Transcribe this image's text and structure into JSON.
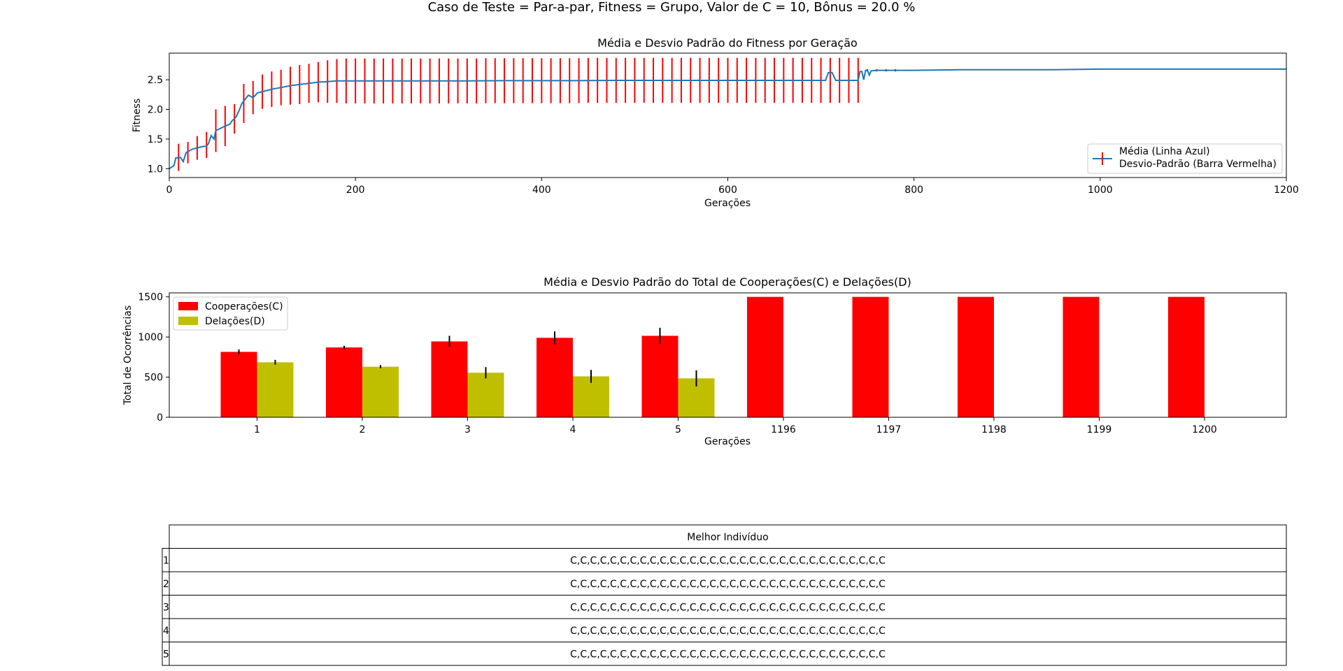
{
  "suptitle": "Caso de Teste = Par-a-par, Fitness = Grupo, Valor de C = 10, Bônus = 20.0 %",
  "colors": {
    "mean_line": "#1f77b4",
    "std_bar": "#ff0000",
    "coop_bar": "#ff0000",
    "delation_bar": "#bfbf00",
    "error_bar": "#000000"
  },
  "chart_data": [
    {
      "type": "line",
      "title": "Média e Desvio Padrão do Fitness por Geração",
      "xlabel": "Gerações",
      "ylabel": "Fitness",
      "xlim": [
        0,
        1200
      ],
      "ylim": [
        0.85,
        2.95
      ],
      "xticks": [
        0,
        200,
        400,
        600,
        800,
        1000,
        1200
      ],
      "yticks": [
        1.0,
        1.5,
        2.0,
        2.5
      ],
      "ytick_labels": [
        "1.0",
        "1.5",
        "2.0",
        "2.5"
      ],
      "legend": {
        "placement": "lower-right",
        "entries": [
          "Média (Linha Azul)",
          "Desvio-Padrão (Barra Vermelha)"
        ]
      },
      "mean_points": [
        [
          0,
          1.0
        ],
        [
          3,
          1.03
        ],
        [
          5,
          1.05
        ],
        [
          7,
          1.18
        ],
        [
          12,
          1.19
        ],
        [
          15,
          1.12
        ],
        [
          18,
          1.27
        ],
        [
          25,
          1.33
        ],
        [
          30,
          1.35
        ],
        [
          35,
          1.37
        ],
        [
          40,
          1.38
        ],
        [
          42,
          1.42
        ],
        [
          45,
          1.56
        ],
        [
          48,
          1.5
        ],
        [
          50,
          1.64
        ],
        [
          55,
          1.68
        ],
        [
          60,
          1.72
        ],
        [
          65,
          1.75
        ],
        [
          68,
          1.82
        ],
        [
          70,
          1.84
        ],
        [
          72,
          1.88
        ],
        [
          75,
          1.98
        ],
        [
          78,
          2.1
        ],
        [
          82,
          2.18
        ],
        [
          85,
          2.24
        ],
        [
          90,
          2.2
        ],
        [
          95,
          2.28
        ],
        [
          100,
          2.3
        ],
        [
          110,
          2.34
        ],
        [
          120,
          2.37
        ],
        [
          130,
          2.4
        ],
        [
          140,
          2.42
        ],
        [
          150,
          2.44
        ],
        [
          160,
          2.46
        ],
        [
          170,
          2.47
        ],
        [
          180,
          2.48
        ],
        [
          200,
          2.48
        ],
        [
          240,
          2.48
        ],
        [
          280,
          2.48
        ],
        [
          320,
          2.48
        ],
        [
          360,
          2.485
        ],
        [
          400,
          2.485
        ],
        [
          440,
          2.485
        ],
        [
          480,
          2.49
        ],
        [
          520,
          2.49
        ],
        [
          560,
          2.49
        ],
        [
          600,
          2.49
        ],
        [
          640,
          2.49
        ],
        [
          680,
          2.49
        ],
        [
          705,
          2.49
        ],
        [
          708,
          2.62
        ],
        [
          712,
          2.62
        ],
        [
          716,
          2.49
        ],
        [
          740,
          2.49
        ],
        [
          742,
          2.64
        ],
        [
          744,
          2.64
        ],
        [
          746,
          2.5
        ],
        [
          748,
          2.66
        ],
        [
          750,
          2.66
        ],
        [
          752,
          2.58
        ],
        [
          754,
          2.65
        ],
        [
          760,
          2.66
        ],
        [
          800,
          2.66
        ],
        [
          850,
          2.67
        ],
        [
          900,
          2.67
        ],
        [
          950,
          2.67
        ],
        [
          1000,
          2.68
        ],
        [
          1050,
          2.68
        ],
        [
          1100,
          2.68
        ],
        [
          1150,
          2.68
        ],
        [
          1200,
          2.68
        ]
      ],
      "std_bars": [
        [
          10,
          1.19,
          0.23
        ],
        [
          20,
          1.27,
          0.18
        ],
        [
          30,
          1.35,
          0.2
        ],
        [
          40,
          1.4,
          0.22
        ],
        [
          50,
          1.64,
          0.36
        ],
        [
          60,
          1.72,
          0.34
        ],
        [
          70,
          1.84,
          0.25
        ],
        [
          80,
          2.1,
          0.33
        ],
        [
          90,
          2.2,
          0.28
        ],
        [
          100,
          2.3,
          0.29
        ],
        [
          110,
          2.34,
          0.3
        ],
        [
          120,
          2.37,
          0.3
        ],
        [
          130,
          2.4,
          0.32
        ],
        [
          140,
          2.42,
          0.33
        ],
        [
          150,
          2.44,
          0.33
        ],
        [
          160,
          2.46,
          0.34
        ],
        [
          170,
          2.47,
          0.36
        ],
        [
          180,
          2.48,
          0.37
        ],
        [
          190,
          2.48,
          0.38
        ],
        [
          200,
          2.48,
          0.38
        ],
        [
          210,
          2.48,
          0.38
        ],
        [
          220,
          2.48,
          0.38
        ],
        [
          230,
          2.48,
          0.38
        ],
        [
          240,
          2.48,
          0.38
        ],
        [
          250,
          2.48,
          0.38
        ],
        [
          260,
          2.48,
          0.38
        ],
        [
          270,
          2.48,
          0.38
        ],
        [
          280,
          2.48,
          0.38
        ],
        [
          290,
          2.48,
          0.38
        ],
        [
          300,
          2.48,
          0.38
        ],
        [
          310,
          2.48,
          0.38
        ],
        [
          320,
          2.48,
          0.38
        ],
        [
          330,
          2.48,
          0.38
        ],
        [
          340,
          2.485,
          0.38
        ],
        [
          350,
          2.485,
          0.38
        ],
        [
          360,
          2.485,
          0.38
        ],
        [
          370,
          2.485,
          0.38
        ],
        [
          380,
          2.485,
          0.38
        ],
        [
          390,
          2.485,
          0.38
        ],
        [
          400,
          2.485,
          0.38
        ],
        [
          410,
          2.485,
          0.38
        ],
        [
          420,
          2.485,
          0.38
        ],
        [
          430,
          2.485,
          0.38
        ],
        [
          440,
          2.485,
          0.38
        ],
        [
          450,
          2.49,
          0.38
        ],
        [
          460,
          2.49,
          0.38
        ],
        [
          470,
          2.49,
          0.38
        ],
        [
          480,
          2.49,
          0.38
        ],
        [
          490,
          2.49,
          0.38
        ],
        [
          500,
          2.49,
          0.38
        ],
        [
          510,
          2.49,
          0.38
        ],
        [
          520,
          2.49,
          0.38
        ],
        [
          530,
          2.49,
          0.38
        ],
        [
          540,
          2.49,
          0.38
        ],
        [
          550,
          2.49,
          0.38
        ],
        [
          560,
          2.49,
          0.38
        ],
        [
          570,
          2.49,
          0.38
        ],
        [
          580,
          2.49,
          0.38
        ],
        [
          590,
          2.49,
          0.38
        ],
        [
          600,
          2.49,
          0.38
        ],
        [
          610,
          2.49,
          0.38
        ],
        [
          620,
          2.49,
          0.38
        ],
        [
          630,
          2.49,
          0.38
        ],
        [
          640,
          2.49,
          0.38
        ],
        [
          650,
          2.49,
          0.38
        ],
        [
          660,
          2.49,
          0.38
        ],
        [
          670,
          2.49,
          0.38
        ],
        [
          680,
          2.49,
          0.38
        ],
        [
          690,
          2.49,
          0.38
        ],
        [
          700,
          2.49,
          0.38
        ],
        [
          710,
          2.49,
          0.38
        ],
        [
          720,
          2.49,
          0.38
        ],
        [
          730,
          2.49,
          0.38
        ],
        [
          740,
          2.49,
          0.38
        ],
        [
          750,
          2.66,
          0.02
        ],
        [
          760,
          2.66,
          0.02
        ],
        [
          770,
          2.66,
          0.02
        ],
        [
          780,
          2.66,
          0.02
        ]
      ]
    },
    {
      "type": "bar",
      "title": "Média e Desvio Padrão do Total de Cooperações(C) e Delações(D)",
      "xlabel": "Gerações",
      "ylabel": "Total de Ocorrências",
      "ylim": [
        0,
        1550
      ],
      "yticks": [
        0,
        500,
        1000,
        1500
      ],
      "categories": [
        "1",
        "2",
        "3",
        "4",
        "5",
        "1196",
        "1197",
        "1198",
        "1199",
        "1200"
      ],
      "legend": {
        "placement": "top-left"
      },
      "series": [
        {
          "name": "Cooperações(C)",
          "values": [
            815,
            870,
            945,
            990,
            1015,
            1500,
            1500,
            1500,
            1500,
            1500
          ],
          "errors": [
            30,
            20,
            70,
            80,
            100,
            0,
            0,
            0,
            0,
            0
          ]
        },
        {
          "name": "Delações(D)",
          "values": [
            685,
            630,
            555,
            510,
            485,
            0,
            0,
            0,
            0,
            0
          ],
          "errors": [
            30,
            20,
            70,
            80,
            100,
            0,
            0,
            0,
            0,
            0
          ]
        }
      ]
    },
    {
      "type": "table",
      "column_header": "Melhor Indivíduo",
      "rows": [
        {
          "label": "1",
          "value": "C,C,C,C,C,C,C,C,C,C,C,C,C,C,C,C,C,C,C,C,C,C,C,C,C,C,C,C,C,C,C,C"
        },
        {
          "label": "2",
          "value": "C,C,C,C,C,C,C,C,C,C,C,C,C,C,C,C,C,C,C,C,C,C,C,C,C,C,C,C,C,C,C,C"
        },
        {
          "label": "3",
          "value": "C,C,C,C,C,C,C,C,C,C,C,C,C,C,C,C,C,C,C,C,C,C,C,C,C,C,C,C,C,C,C,C"
        },
        {
          "label": "4",
          "value": "C,C,C,C,C,C,C,C,C,C,C,C,C,C,C,C,C,C,C,C,C,C,C,C,C,C,C,C,C,C,C,C"
        },
        {
          "label": "5",
          "value": "C,C,C,C,C,C,C,C,C,C,C,C,C,C,C,C,C,C,C,C,C,C,C,C,C,C,C,C,C,C,C,C"
        }
      ]
    }
  ]
}
